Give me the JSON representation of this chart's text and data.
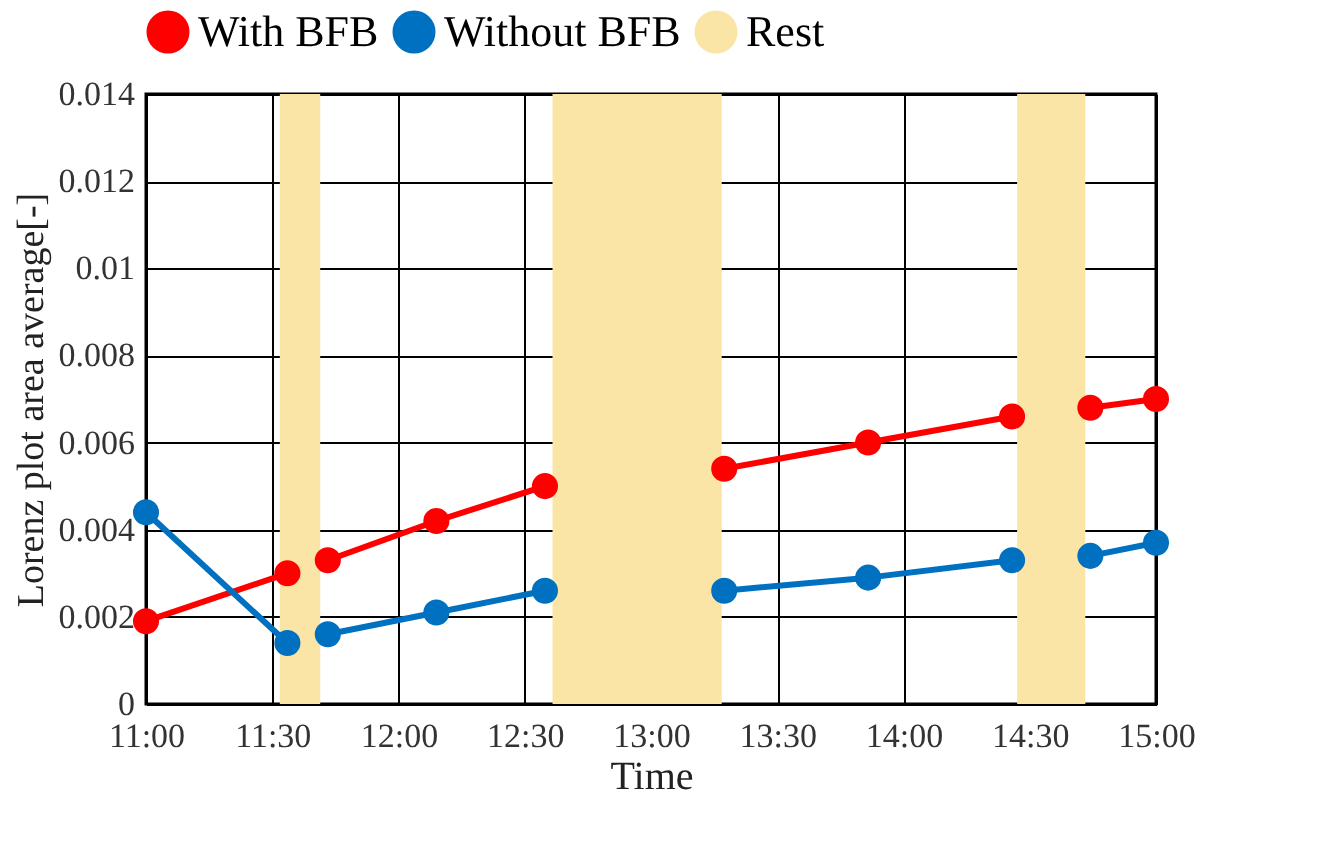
{
  "chart_data": {
    "type": "line",
    "xlabel": "Time",
    "ylabel": "Lorenz plot area average[-]",
    "x": [
      11.0,
      11.56,
      11.62,
      11.72,
      12.15,
      12.58,
      12.9,
      13.29,
      13.86,
      14.43,
      14.6,
      14.74,
      15.0
    ],
    "series": [
      {
        "name": "With BFB",
        "color": "#ff0000",
        "values": [
          0.0019,
          0.003,
          null,
          0.0033,
          0.0042,
          0.005,
          null,
          0.0054,
          0.006,
          0.0066,
          null,
          0.0068,
          0.007
        ]
      },
      {
        "name": "Without BFB",
        "color": "#0070c0",
        "values": [
          0.0044,
          0.0014,
          null,
          0.0016,
          0.0021,
          0.0026,
          null,
          0.0026,
          0.0029,
          0.0033,
          null,
          0.0034,
          0.0037
        ]
      }
    ],
    "bands": [
      {
        "axis": "x",
        "from": 11.53,
        "to": 11.69,
        "label": "Rest",
        "color": "#fbe5a6"
      },
      {
        "axis": "x",
        "from": 12.61,
        "to": 13.28,
        "color": "#fbe5a6"
      },
      {
        "axis": "x",
        "from": 14.45,
        "to": 14.72,
        "color": "#fbe5a6"
      }
    ],
    "xlim": [
      11,
      15
    ],
    "xticks": [
      {
        "value": 11,
        "label": "11:00"
      },
      {
        "value": 11.5,
        "label": "11:30"
      },
      {
        "value": 12,
        "label": "12:00"
      },
      {
        "value": 12.5,
        "label": "12:30"
      },
      {
        "value": 13,
        "label": "13:00"
      },
      {
        "value": 13.5,
        "label": "13:30"
      },
      {
        "value": 14,
        "label": "14:00"
      },
      {
        "value": 14.5,
        "label": "14:30"
      },
      {
        "value": 15,
        "label": "15:00"
      }
    ],
    "ylim": [
      0,
      0.014
    ],
    "yticks": [
      0,
      0.002,
      0.004,
      0.006,
      0.008,
      0.01,
      0.012,
      0.014
    ],
    "grid": true,
    "legend": "top",
    "marker": "circle",
    "line_style": "solid"
  }
}
